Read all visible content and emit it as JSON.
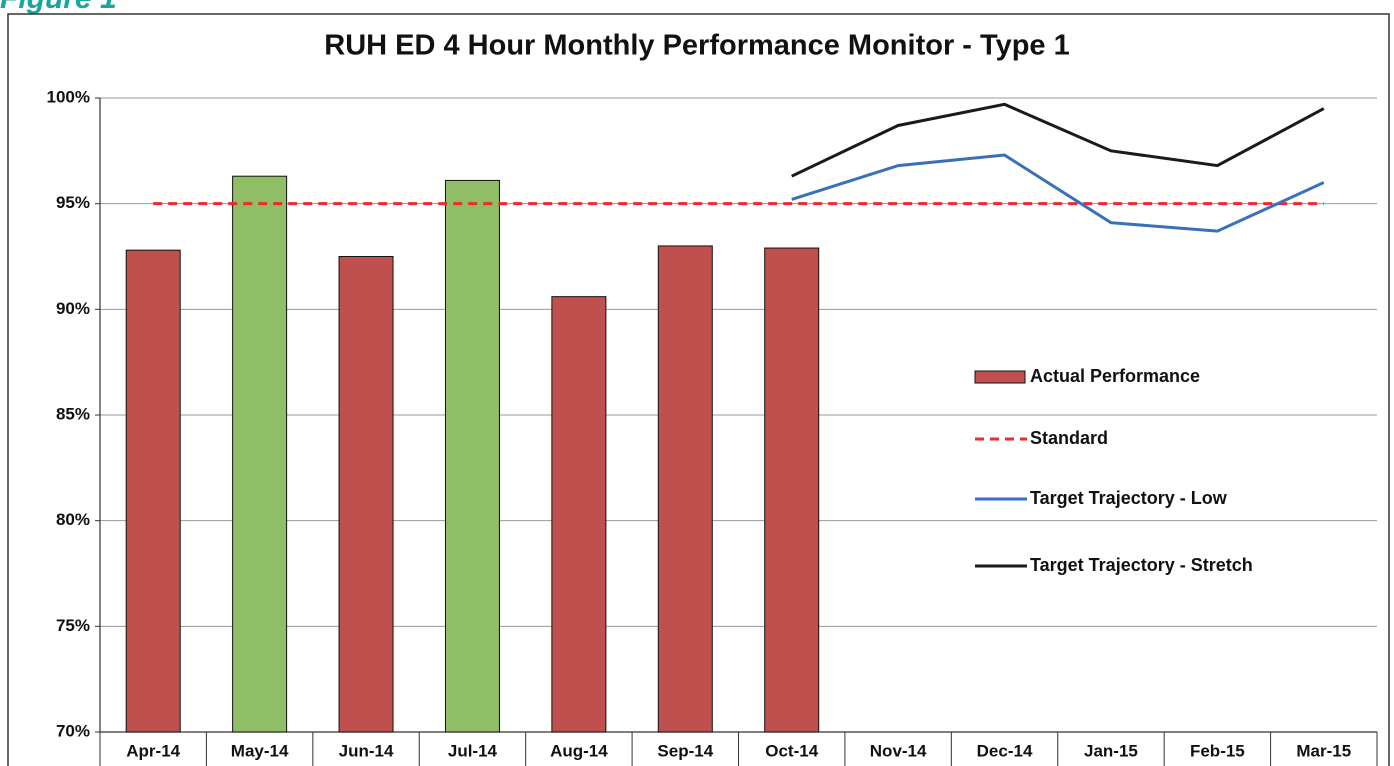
{
  "chart_data": {
    "type": "bar-line",
    "figure_label": "Figure 1",
    "title": "RUH ED 4 Hour Monthly Performance Monitor - Type 1",
    "categories": [
      "Apr-14",
      "May-14",
      "Jun-14",
      "Jul-14",
      "Aug-14",
      "Sep-14",
      "Oct-14",
      "Nov-14",
      "Dec-14",
      "Jan-15",
      "Feb-15",
      "Mar-15"
    ],
    "ylim": [
      70,
      100
    ],
    "yticks": [
      {
        "value": 70,
        "label": "70%"
      },
      {
        "value": 75,
        "label": "75%"
      },
      {
        "value": 80,
        "label": "80%"
      },
      {
        "value": 85,
        "label": "85%"
      },
      {
        "value": 90,
        "label": "90%"
      },
      {
        "value": 95,
        "label": "95%"
      },
      {
        "value": 100,
        "label": "100%"
      }
    ],
    "grid": true,
    "legend": "right",
    "series": [
      {
        "name": "Actual Performance",
        "kind": "bar",
        "color": "#c0504d",
        "colors": [
          "#c0504d",
          "#8fbe67",
          "#c0504d",
          "#8fbe67",
          "#c0504d",
          "#c0504d",
          "#c0504d",
          null,
          null,
          null,
          null,
          null
        ],
        "values": [
          92.8,
          96.3,
          92.5,
          96.1,
          90.6,
          93.0,
          92.9,
          null,
          null,
          null,
          null,
          null
        ]
      },
      {
        "name": "Standard",
        "kind": "line",
        "color": "#ee2a2a",
        "dashed": true,
        "values": [
          95,
          95,
          95,
          95,
          95,
          95,
          95,
          95,
          95,
          95,
          95,
          95
        ]
      },
      {
        "name": "Target Trajectory - Low",
        "kind": "line",
        "color": "#3a6fba",
        "dashed": false,
        "values": [
          null,
          null,
          null,
          null,
          null,
          null,
          95.2,
          96.8,
          97.3,
          94.1,
          93.7,
          96.0
        ]
      },
      {
        "name": "Target Trajectory - Stretch",
        "kind": "line",
        "color": "#1a1a1a",
        "dashed": false,
        "values": [
          null,
          null,
          null,
          null,
          null,
          null,
          96.3,
          98.7,
          99.7,
          97.5,
          96.8,
          99.5
        ]
      }
    ]
  }
}
